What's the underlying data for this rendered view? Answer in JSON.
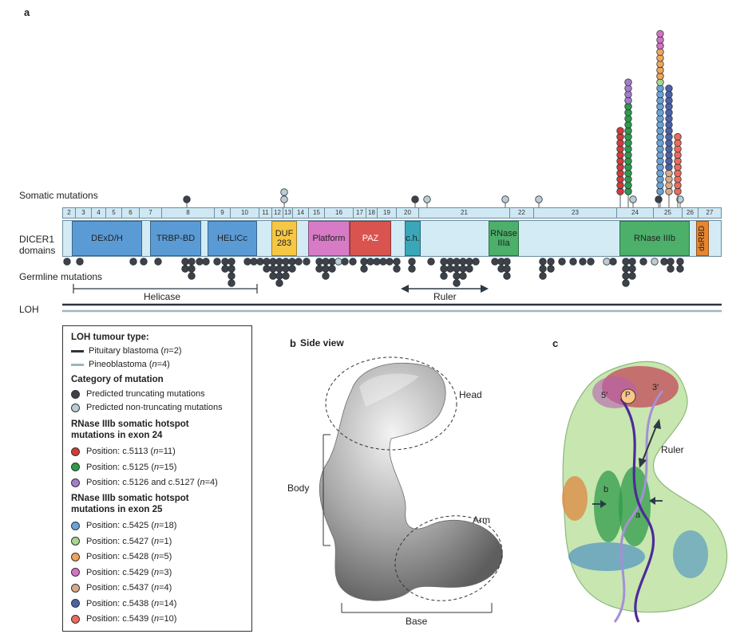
{
  "panel_a": {
    "letter": "a",
    "somatic_label": "Somatic mutations",
    "domains_label_1": "DICER1",
    "domains_label_2": "domains",
    "germline_label": "Germline mutations",
    "helicase_label": "Helicase",
    "ruler_label": "Ruler",
    "loh_label": "LOH",
    "exons": [
      "2",
      "3",
      "4",
      "5",
      "6",
      "7",
      "8",
      "9",
      "10",
      "11",
      "12",
      "13",
      "14",
      "15",
      "16",
      "17",
      "18",
      "19",
      "20",
      "21",
      "22",
      "23",
      "24",
      "25",
      "26",
      "27"
    ],
    "domains": {
      "dexdh": "DExD/H",
      "trbp": "TRBP-BD",
      "helicc": "HELICc",
      "duf_1": "DUF",
      "duf_2": "283",
      "platform": "Platform",
      "paz": "PAZ",
      "ch": "c.h.",
      "rnase3a_1": "RNase",
      "rnase3a_2": "IIIa",
      "rnase3b": "RNase IIIb",
      "dsrbd": "dsRBD"
    }
  },
  "legend": {
    "loh_heading": "LOH tumour type:",
    "pituitary": "Pituitary blastoma (",
    "pituitary_n": "n",
    "pituitary_end": "=2)",
    "pineo": "Pineoblastoma (",
    "pineo_n": "n",
    "pineo_end": "=4)",
    "category_heading": "Category of mutation",
    "truncating": "Predicted truncating mutations",
    "nontruncating": "Predicted non-truncating mutations",
    "ex24_heading_1": "RNase IIIb somatic hotspot",
    "ex24_heading_2": "mutations in exon 24",
    "ex24": [
      {
        "pos": "Position: c.5113 (",
        "n": "=11)",
        "color": "#d23b3b"
      },
      {
        "pos": "Position: c.5125 (",
        "n": "=15)",
        "color": "#2e9a4a"
      },
      {
        "pos": "Position: c.5126 and c.5127 (",
        "n": "=4)",
        "color": "#a57cc9"
      }
    ],
    "ex25_heading_1": "RNase IIIb somatic hotspot",
    "ex25_heading_2": "mutations in exon 25",
    "ex25": [
      {
        "pos": "Position: c.5425 (",
        "n": "=18)",
        "color": "#6aa3d9"
      },
      {
        "pos": "Position: c.5427 (",
        "n": "=1)",
        "color": "#a9d68f"
      },
      {
        "pos": "Position: c.5428 (",
        "n": "=5)",
        "color": "#f0a55a"
      },
      {
        "pos": "Position: c.5429 (",
        "n": "=3)",
        "color": "#d473c2"
      },
      {
        "pos": "Position: c.5437 (",
        "n": "=4)",
        "color": "#d9a98a"
      },
      {
        "pos": "Position: c.5438 (",
        "n": "=14)",
        "color": "#4b62a8"
      },
      {
        "pos": "Position: c.5439 (",
        "n": "=10)",
        "color": "#ee6a5a"
      }
    ],
    "n_symbol": "n"
  },
  "panel_b": {
    "letter": "b",
    "title": "Side view",
    "head": "Head",
    "body": "Body",
    "arm": "Arm",
    "base": "Base"
  },
  "panel_c": {
    "letter": "c",
    "five_prime": "5′",
    "p": "P",
    "three_prime": "3′",
    "ruler": "Ruler",
    "b": "b",
    "a": "a"
  },
  "colors": {
    "truncating": "#3d4249",
    "nontruncating": "#b9cdd3",
    "pituitary_line": "#2b3440",
    "pineo_line": "#9fb5be"
  }
}
